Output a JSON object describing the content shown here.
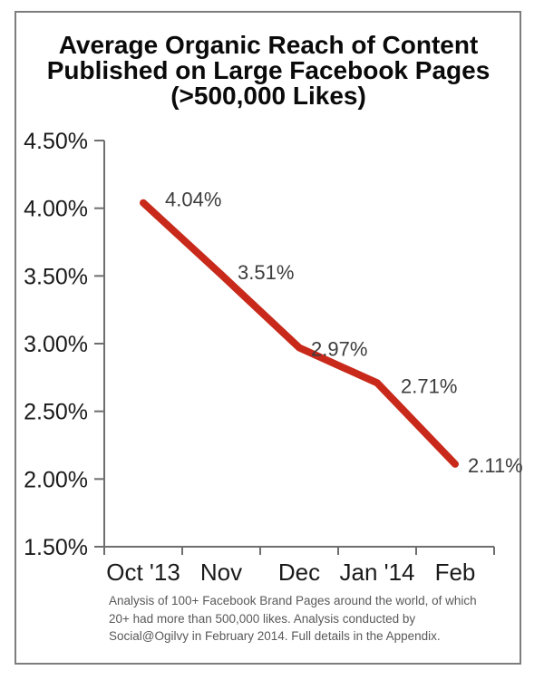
{
  "header": {
    "lines": [
      "Average Organic Reach of Content",
      "Published on Large Facebook Pages",
      "(>500,000 Likes)"
    ]
  },
  "chart_data": {
    "type": "line",
    "title": "Average Organic Reach of Content Published on Large Facebook Pages (>500,000 Likes)",
    "categories": [
      "Oct '13",
      "Nov",
      "Dec",
      "Jan '14",
      "Feb"
    ],
    "series": [
      {
        "name": "Average Organic Reach",
        "values": [
          4.04,
          3.51,
          2.97,
          2.71,
          2.11
        ]
      }
    ],
    "point_labels": [
      "4.04%",
      "3.51%",
      "2.97%",
      "2.71%",
      "2.11%"
    ],
    "xlabel": "",
    "ylabel": "",
    "ylim": [
      1.5,
      4.5
    ],
    "y_tick_labels": [
      "4.50%",
      "4.00%",
      "3.50%",
      "3.00%",
      "2.50%",
      "2.00%",
      "1.50%"
    ],
    "y_tick_values": [
      4.5,
      4.0,
      3.5,
      3.0,
      2.5,
      2.0,
      1.5
    ],
    "grid": false,
    "legend": false,
    "colors": {
      "line": "#c8291a",
      "axis": "#6e6e6e",
      "tick_label": "#1a1a1a",
      "data_label": "#3d3d3d"
    }
  },
  "footnote": {
    "lines": [
      "Analysis of 100+ Facebook Brand Pages around the world, of which",
      "20+ had more than 500,000 likes. Analysis conducted by",
      "Social@Ogilvy in February 2014. Full details in the Appendix."
    ]
  }
}
